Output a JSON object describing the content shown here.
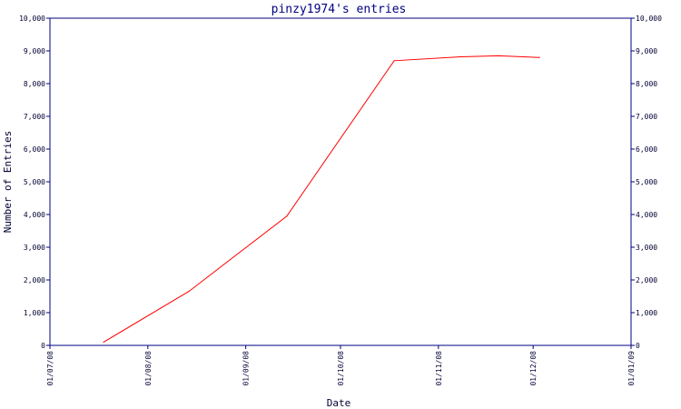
{
  "chart_data": {
    "type": "line",
    "title": "pinzy1974's entries",
    "xlabel": "Date",
    "ylabel": "Number of Entries",
    "ylim": [
      0,
      10000
    ],
    "y_ticks": [
      "0",
      "1,000",
      "2,000",
      "3,000",
      "4,000",
      "5,000",
      "6,000",
      "7,000",
      "8,000",
      "9,000",
      "10,000"
    ],
    "x_ticks": [
      "01/07/08",
      "01/08/08",
      "01/09/08",
      "01/10/08",
      "01/11/08",
      "01/12/08",
      "01/01/09"
    ],
    "x_tick_dates": [
      "2008-07-01",
      "2008-08-01",
      "2008-09-01",
      "2008-10-01",
      "2008-11-01",
      "2008-12-01",
      "2009-01-01"
    ],
    "xlim": [
      "2008-07-01",
      "2009-01-01"
    ],
    "grid": false,
    "line_color": "#ff0000",
    "axis_color": "#000080",
    "series": [
      {
        "x": [
          "2008-07-18",
          "2008-08-14",
          "2008-09-14",
          "2008-10-18",
          "2008-11-08",
          "2008-11-20",
          "2008-12-03"
        ],
        "values": [
          100,
          1650,
          3950,
          8700,
          8820,
          8850,
          8800
        ]
      }
    ]
  }
}
